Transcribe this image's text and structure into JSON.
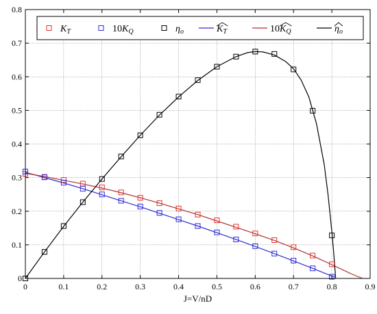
{
  "chart_data": {
    "type": "line",
    "title": "",
    "xlabel": "J=V/nD",
    "ylabel": "",
    "xlim": [
      0,
      0.9
    ],
    "ylim": [
      0,
      0.8
    ],
    "xticks": [
      "0",
      "0.1",
      "0.2",
      "0.3",
      "0.4",
      "0.5",
      "0.6",
      "0.7",
      "0.8",
      "0.9"
    ],
    "yticks": [
      "0",
      "0.1",
      "0.2",
      "0.3",
      "0.4",
      "0.5",
      "0.6",
      "0.7",
      "0.8"
    ],
    "grid": true,
    "legend_position": "top",
    "legend_entries": [
      {
        "label": "K",
        "sub": "T",
        "prefix": "",
        "hat": false,
        "marker": "square",
        "color": "#e03030"
      },
      {
        "label": "K",
        "sub": "Q",
        "prefix": "10",
        "hat": false,
        "marker": "square",
        "color": "#2b2bd6"
      },
      {
        "label": "η",
        "sub": "o",
        "prefix": "",
        "hat": false,
        "marker": "square",
        "color": "#000000"
      },
      {
        "label": "K",
        "sub": "T",
        "prefix": "",
        "hat": true,
        "marker": "line",
        "color": "#2b2bd6"
      },
      {
        "label": "K",
        "sub": "Q",
        "prefix": "10",
        "hat": true,
        "marker": "line",
        "color": "#b0302a"
      },
      {
        "label": "η",
        "sub": "o",
        "prefix": "",
        "hat": true,
        "marker": "line",
        "color": "#000000"
      }
    ],
    "series": [
      {
        "kind": "markers",
        "color": "#e03030",
        "x": [
          0,
          0.05,
          0.1,
          0.15,
          0.2,
          0.25,
          0.3,
          0.35,
          0.4,
          0.45,
          0.5,
          0.55,
          0.6,
          0.65,
          0.7,
          0.75,
          0.8
        ],
        "y": [
          0.311,
          0.302,
          0.293,
          0.282,
          0.271,
          0.256,
          0.24,
          0.224,
          0.208,
          0.19,
          0.173,
          0.154,
          0.134,
          0.114,
          0.093,
          0.068,
          0.042
        ]
      },
      {
        "kind": "markers",
        "color": "#2b2bd6",
        "x": [
          0,
          0.05,
          0.1,
          0.15,
          0.2,
          0.25,
          0.3,
          0.35,
          0.4,
          0.45,
          0.5,
          0.55,
          0.6,
          0.65,
          0.7,
          0.75,
          0.8
        ],
        "y": [
          0.318,
          0.301,
          0.285,
          0.267,
          0.25,
          0.231,
          0.214,
          0.195,
          0.176,
          0.156,
          0.137,
          0.116,
          0.096,
          0.074,
          0.053,
          0.03,
          0.005
        ]
      },
      {
        "kind": "markers",
        "color": "#000000",
        "x": [
          0,
          0.05,
          0.1,
          0.15,
          0.2,
          0.25,
          0.3,
          0.35,
          0.4,
          0.45,
          0.5,
          0.55,
          0.6,
          0.65,
          0.7,
          0.75,
          0.8
        ],
        "y": [
          0.0,
          0.079,
          0.156,
          0.227,
          0.296,
          0.363,
          0.426,
          0.487,
          0.541,
          0.59,
          0.63,
          0.66,
          0.675,
          0.668,
          0.622,
          0.499,
          0.128
        ]
      },
      {
        "kind": "line",
        "color": "#2b2bd6",
        "x": [
          0,
          0.05,
          0.1,
          0.15,
          0.2,
          0.25,
          0.3,
          0.35,
          0.4,
          0.45,
          0.5,
          0.55,
          0.6,
          0.65,
          0.7,
          0.75,
          0.8,
          0.805
        ],
        "y": [
          0.316,
          0.3,
          0.284,
          0.267,
          0.249,
          0.231,
          0.213,
          0.194,
          0.175,
          0.156,
          0.136,
          0.116,
          0.095,
          0.074,
          0.052,
          0.03,
          0.007,
          0.005
        ]
      },
      {
        "kind": "line",
        "color": "#b0302a",
        "x": [
          0,
          0.05,
          0.1,
          0.15,
          0.2,
          0.25,
          0.3,
          0.35,
          0.4,
          0.45,
          0.5,
          0.55,
          0.6,
          0.65,
          0.7,
          0.75,
          0.8,
          0.85,
          0.88
        ],
        "y": [
          0.313,
          0.303,
          0.292,
          0.281,
          0.269,
          0.255,
          0.24,
          0.224,
          0.207,
          0.19,
          0.171,
          0.152,
          0.133,
          0.113,
          0.091,
          0.067,
          0.041,
          0.014,
          0.0
        ]
      },
      {
        "kind": "line",
        "color": "#000000",
        "x": [
          0,
          0.05,
          0.1,
          0.15,
          0.2,
          0.25,
          0.3,
          0.35,
          0.4,
          0.45,
          0.5,
          0.55,
          0.58,
          0.6,
          0.62,
          0.65,
          0.68,
          0.7,
          0.72,
          0.74,
          0.76,
          0.78,
          0.79,
          0.8,
          0.805,
          0.808,
          0.81
        ],
        "y": [
          0.0,
          0.079,
          0.155,
          0.227,
          0.296,
          0.362,
          0.426,
          0.486,
          0.54,
          0.589,
          0.63,
          0.66,
          0.672,
          0.675,
          0.674,
          0.665,
          0.645,
          0.624,
          0.59,
          0.54,
          0.46,
          0.34,
          0.25,
          0.14,
          0.075,
          0.03,
          0.0
        ]
      }
    ]
  }
}
